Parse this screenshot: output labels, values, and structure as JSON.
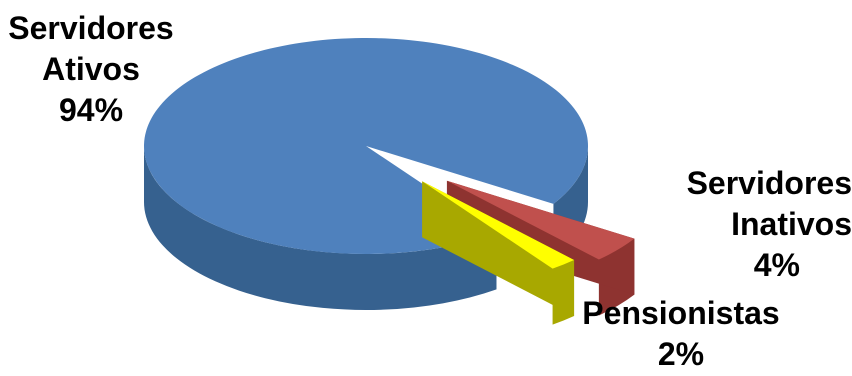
{
  "colors": {
    "ativos_top": "#4F81BD",
    "ativos_side": "#36618F",
    "inativos_top": "#C0504D",
    "inativos_side": "#8E3330",
    "pensionistas_top": "#FFFF00",
    "pensionistas_side": "#A8A800"
  },
  "chart_data": {
    "type": "pie",
    "style": "3d-exploded",
    "slices": [
      {
        "name": "Servidores Ativos",
        "value": 94,
        "unit": "%",
        "color": "#4F81BD"
      },
      {
        "name": "Servidores Inativos",
        "value": 4,
        "unit": "%",
        "color": "#C0504D"
      },
      {
        "name": "Pensionistas",
        "value": 2,
        "unit": "%",
        "color": "#FFFF00"
      }
    ],
    "labels": {
      "ativos": {
        "line1": "Servidores",
        "line2": "Ativos",
        "pct": "94%"
      },
      "inativos": {
        "line1": "Servidores",
        "line2": "Inativos",
        "pct": "4%"
      },
      "pensionistas": {
        "line1": "Pensionistas",
        "pct": "2%"
      }
    }
  }
}
